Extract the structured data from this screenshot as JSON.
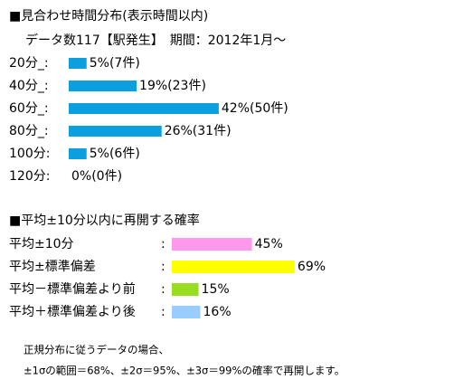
{
  "chart_data": [
    {
      "type": "bar",
      "title": "■見合わせ時間分布(表示時間以内)",
      "subtitle": "データ数117【駅発生】　期間：2012年1月～",
      "categories": [
        "20分_:",
        "40分_:",
        "60分_:",
        "80分_:",
        "100分:",
        "120分:"
      ],
      "values": [
        5,
        19,
        42,
        26,
        5,
        0
      ],
      "value_labels": [
        "5%(7件)",
        "19%(23件)",
        "42%(50件)",
        "26%(31件)",
        "5%(6件)",
        "0%(0件)"
      ],
      "color": "#0c9fe0"
    },
    {
      "type": "bar",
      "title": "■平均±10分以内に再開する確率",
      "categories": [
        "平均±10分",
        "平均±標準偏差",
        "平均－標準偏差より前",
        "平均＋標準偏差より後"
      ],
      "separator": ":",
      "values": [
        45,
        69,
        15,
        16
      ],
      "value_labels": [
        "45%",
        "69%",
        "15%",
        "16%"
      ],
      "colors": [
        "#ff99ee",
        "#ffff00",
        "#99dd22",
        "#99ccff"
      ]
    }
  ],
  "notes": [
    "正規分布に従うデータの場合、",
    "±1σの範囲＝68%、±2σ＝95%、±3σ＝99%の確率で再開します。"
  ]
}
